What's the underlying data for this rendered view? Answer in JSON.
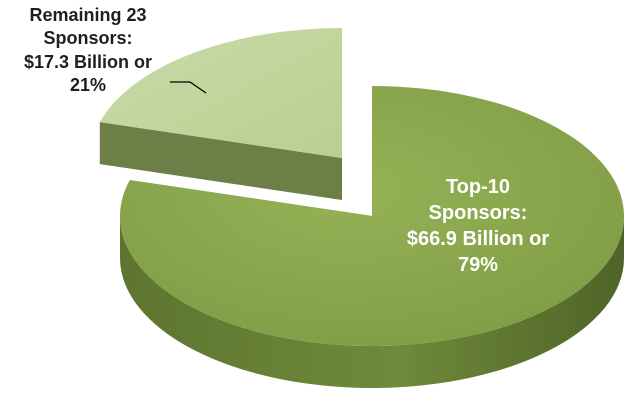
{
  "chart_data": {
    "type": "pie",
    "style": "3d-exploded",
    "slices": [
      {
        "lines": [
          "Top-10",
          "Sponsors:",
          "$66.9 Billion or",
          "79%"
        ],
        "value_billion": 66.9,
        "percent": 79,
        "color": "#8aa84e"
      },
      {
        "lines": [
          "Remaining 23",
          "Sponsors:",
          "$17.3 Billion or",
          "21%"
        ],
        "value_billion": 17.3,
        "percent": 21,
        "color": "#c6d8a4"
      }
    ]
  }
}
